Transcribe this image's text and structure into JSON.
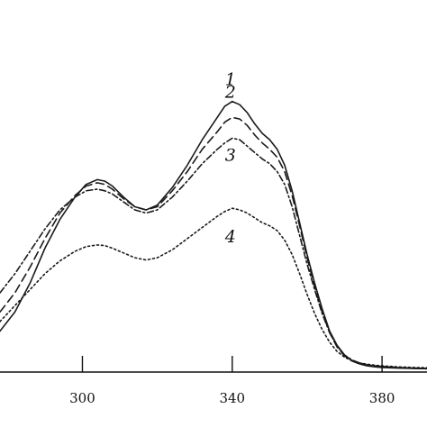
{
  "chart_data": {
    "type": "line",
    "xlim": [
      278,
      392
    ],
    "ylim": [
      0,
      1.0
    ],
    "x_ticks": [
      300,
      340,
      380
    ],
    "x_tick_labels": [
      "300",
      "340",
      "380"
    ],
    "grid": false,
    "legend": "inline-labels",
    "series": [
      {
        "name": "1",
        "style": "solid",
        "x": [
          278,
          282,
          286,
          290,
          294,
          298,
          301,
          304,
          306,
          308,
          311,
          314,
          317,
          320,
          324,
          328,
          332,
          336,
          338,
          340,
          342,
          344,
          346,
          348,
          350,
          352,
          354,
          356,
          358,
          360,
          362,
          364,
          366,
          368,
          370,
          372,
          374,
          376,
          378,
          380,
          384,
          388,
          392
        ],
        "y": [
          0.12,
          0.18,
          0.27,
          0.38,
          0.47,
          0.54,
          0.58,
          0.595,
          0.59,
          0.575,
          0.54,
          0.51,
          0.5,
          0.515,
          0.57,
          0.64,
          0.72,
          0.79,
          0.825,
          0.84,
          0.83,
          0.805,
          0.77,
          0.74,
          0.72,
          0.69,
          0.64,
          0.56,
          0.46,
          0.36,
          0.27,
          0.19,
          0.12,
          0.075,
          0.045,
          0.027,
          0.017,
          0.011,
          0.008,
          0.006,
          0.004,
          0.003,
          0.002
        ]
      },
      {
        "name": "2",
        "style": "dashed",
        "x": [
          278,
          282,
          286,
          290,
          294,
          298,
          301,
          304,
          306,
          308,
          311,
          314,
          317,
          320,
          324,
          328,
          332,
          336,
          338,
          340,
          342,
          344,
          346,
          348,
          350,
          352,
          354,
          356,
          358,
          360,
          362,
          364,
          366,
          368,
          370,
          372,
          374,
          376,
          378,
          380,
          384,
          388,
          392
        ],
        "y": [
          0.18,
          0.24,
          0.32,
          0.41,
          0.49,
          0.545,
          0.575,
          0.585,
          0.58,
          0.565,
          0.535,
          0.51,
          0.5,
          0.51,
          0.56,
          0.62,
          0.69,
          0.745,
          0.775,
          0.79,
          0.785,
          0.765,
          0.735,
          0.71,
          0.69,
          0.665,
          0.62,
          0.545,
          0.45,
          0.35,
          0.26,
          0.18,
          0.115,
          0.07,
          0.042,
          0.026,
          0.017,
          0.012,
          0.009,
          0.007,
          0.005,
          0.003,
          0.002
        ]
      },
      {
        "name": "3",
        "style": "dash-dot",
        "x": [
          278,
          282,
          286,
          290,
          294,
          298,
          301,
          304,
          306,
          308,
          311,
          314,
          317,
          320,
          324,
          328,
          332,
          336,
          338,
          340,
          342,
          344,
          346,
          348,
          350,
          352,
          354,
          356,
          358,
          360,
          362,
          364,
          366,
          368,
          370,
          372,
          374,
          376,
          378,
          380,
          384,
          388,
          392
        ],
        "y": [
          0.24,
          0.3,
          0.37,
          0.44,
          0.5,
          0.54,
          0.56,
          0.565,
          0.56,
          0.55,
          0.525,
          0.5,
          0.49,
          0.5,
          0.54,
          0.59,
          0.645,
          0.69,
          0.71,
          0.725,
          0.72,
          0.7,
          0.68,
          0.66,
          0.645,
          0.62,
          0.58,
          0.51,
          0.42,
          0.33,
          0.25,
          0.175,
          0.115,
          0.072,
          0.045,
          0.029,
          0.02,
          0.014,
          0.011,
          0.009,
          0.006,
          0.004,
          0.003
        ]
      },
      {
        "name": "4",
        "style": "dotted",
        "x": [
          278,
          282,
          286,
          290,
          294,
          298,
          301,
          304,
          306,
          308,
          311,
          314,
          317,
          320,
          324,
          328,
          332,
          336,
          338,
          340,
          342,
          344,
          346,
          348,
          350,
          352,
          354,
          356,
          358,
          360,
          362,
          364,
          366,
          368,
          370,
          372,
          374,
          376,
          378,
          380,
          384,
          388,
          392
        ],
        "y": [
          0.15,
          0.2,
          0.25,
          0.3,
          0.34,
          0.37,
          0.385,
          0.39,
          0.388,
          0.38,
          0.365,
          0.35,
          0.343,
          0.35,
          0.375,
          0.41,
          0.445,
          0.48,
          0.495,
          0.505,
          0.5,
          0.49,
          0.475,
          0.46,
          0.45,
          0.435,
          0.405,
          0.36,
          0.3,
          0.235,
          0.175,
          0.125,
          0.085,
          0.056,
          0.038,
          0.027,
          0.02,
          0.016,
          0.013,
          0.011,
          0.008,
          0.006,
          0.005
        ]
      }
    ]
  },
  "colors": {
    "ink": "#1a1a1a",
    "background": "#ffffff"
  }
}
